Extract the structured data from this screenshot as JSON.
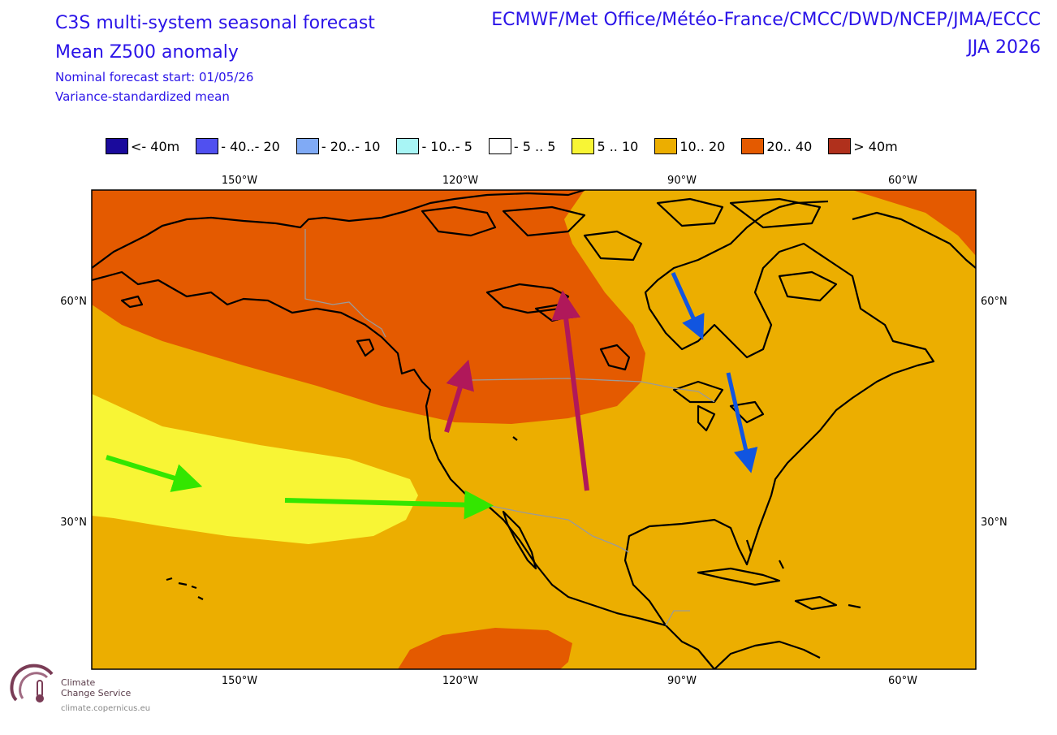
{
  "header": {
    "title_line1": "C3S multi-system seasonal forecast",
    "title_line2": "Mean Z500 anomaly",
    "start": "Nominal forecast start: 01/05/26",
    "method": "Variance-standardized mean",
    "centres": "ECMWF/Met Office/Météo-France/CMCC/DWD/NCEP/JMA/ECCC",
    "season": "JJA 2026"
  },
  "legend": [
    {
      "label": "<- 40m",
      "color": "#1a0a9c"
    },
    {
      "label": "- 40..- 20",
      "color": "#5050f0"
    },
    {
      "label": "- 20..- 10",
      "color": "#80aaf5"
    },
    {
      "label": "- 10..- 5",
      "color": "#a8f5f5"
    },
    {
      "label": "- 5 .. 5",
      "color": "#ffffff"
    },
    {
      "label": "5 .. 10",
      "color": "#f8f535"
    },
    {
      "label": "10.. 20",
      "color": "#ecae00"
    },
    {
      "label": "20.. 40",
      "color": "#e45a00"
    },
    {
      "label": "> 40m",
      "color": "#b0301c"
    }
  ],
  "axes": {
    "lon_labels": [
      "150°W",
      "120°W",
      "90°W",
      "60°W"
    ],
    "lat_labels": [
      "60°N",
      "30°N"
    ]
  },
  "colors": {
    "orange": "#ecae00",
    "dark_orange": "#e45a00",
    "red": "#b0301c",
    "yellow": "#f8f535",
    "arrow_green": "#33e600",
    "arrow_magenta": "#b0185a",
    "arrow_blue": "#1155e0",
    "text_blue": "#2a13e8"
  },
  "logo": {
    "line1": "Climate",
    "line2": "Change Service",
    "url": "climate.copernicus.eu"
  }
}
